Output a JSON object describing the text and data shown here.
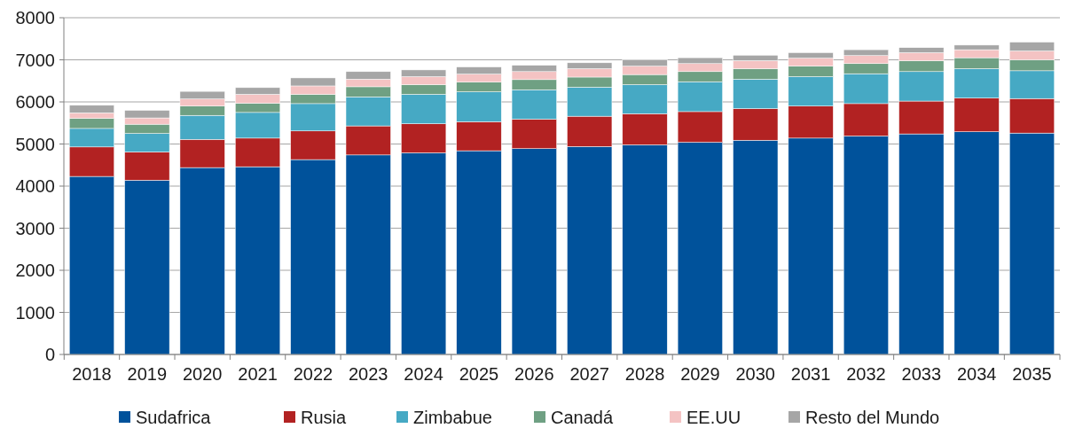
{
  "chart_data": {
    "type": "bar",
    "stacked": true,
    "categories": [
      "2018",
      "2019",
      "2020",
      "2021",
      "2022",
      "2023",
      "2024",
      "2025",
      "2026",
      "2027",
      "2028",
      "2029",
      "2030",
      "2031",
      "2032",
      "2033",
      "2034",
      "2035"
    ],
    "series": [
      {
        "name": "Sudafrica",
        "color": "#00529b",
        "values": [
          4230,
          4140,
          4440,
          4460,
          4630,
          4740,
          4790,
          4840,
          4890,
          4940,
          4980,
          5040,
          5090,
          5140,
          5190,
          5240,
          5290,
          5260
        ]
      },
      {
        "name": "Rusia",
        "color": "#b22222",
        "values": [
          700,
          670,
          670,
          680,
          680,
          690,
          690,
          690,
          700,
          720,
          740,
          730,
          750,
          760,
          770,
          780,
          800,
          820
        ]
      },
      {
        "name": "Zimbabue",
        "color": "#46a9c4",
        "values": [
          440,
          440,
          570,
          610,
          650,
          690,
          700,
          710,
          700,
          690,
          690,
          710,
          700,
          700,
          710,
          700,
          700,
          660
        ]
      },
      {
        "name": "Canadá",
        "color": "#6fa083",
        "values": [
          240,
          220,
          220,
          220,
          220,
          240,
          230,
          230,
          240,
          240,
          240,
          240,
          250,
          250,
          240,
          260,
          260,
          260
        ]
      },
      {
        "name": "EE.UU",
        "color": "#f4c3c3",
        "values": [
          130,
          150,
          170,
          210,
          200,
          180,
          190,
          190,
          190,
          200,
          200,
          190,
          190,
          190,
          190,
          190,
          190,
          210
        ]
      },
      {
        "name": "Resto del Mundo",
        "color": "#a6a6a6",
        "values": [
          180,
          180,
          180,
          160,
          190,
          180,
          160,
          170,
          150,
          140,
          150,
          140,
          130,
          130,
          140,
          120,
          110,
          210
        ]
      }
    ],
    "ylim": [
      0,
      8000
    ],
    "yticks": [
      0,
      1000,
      2000,
      3000,
      4000,
      5000,
      6000,
      7000,
      8000
    ],
    "grid": "y",
    "legend": "bottom"
  }
}
